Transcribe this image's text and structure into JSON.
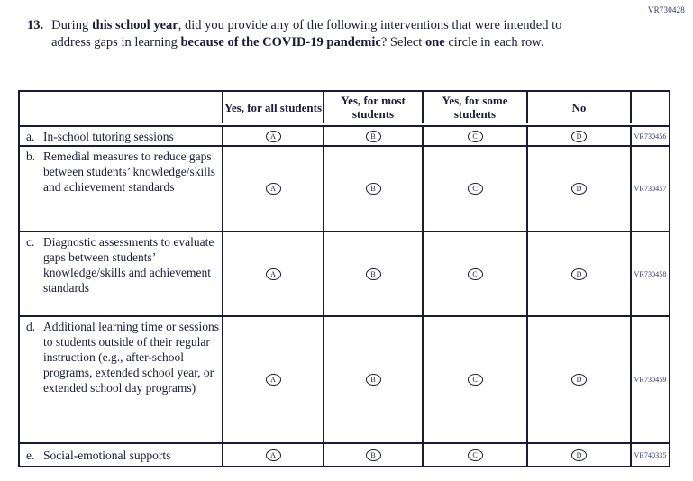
{
  "page": {
    "form_code": "VR730428"
  },
  "question": {
    "number": "13.",
    "segments": [
      {
        "text": "During ",
        "bold": false
      },
      {
        "text": "this school year",
        "bold": true
      },
      {
        "text": ", did you provide any of the following interventions that were intended to address gaps in learning ",
        "bold": false
      },
      {
        "text": "because of the COVID-19 pandemic",
        "bold": true
      },
      {
        "text": "? Select ",
        "bold": false
      },
      {
        "text": "one",
        "bold": true
      },
      {
        "text": " circle in each row.",
        "bold": false
      }
    ]
  },
  "table": {
    "column_headers": [
      "",
      "Yes, for all students",
      "Yes, for most students",
      "Yes, for some students",
      "No",
      ""
    ],
    "option_letters": [
      "A",
      "B",
      "C",
      "D"
    ],
    "rows": [
      {
        "label": "a.",
        "text": "In-school tutoring sessions",
        "code": "VR730456"
      },
      {
        "label": "b.",
        "text": "Remedial measures to reduce gaps between students’ knowledge/skills and achievement standards",
        "code": "VR730457"
      },
      {
        "label": "c.",
        "text": "Diagnostic assessments to evaluate gaps between students’ knowledge/skills and achievement standards",
        "code": "VR730458"
      },
      {
        "label": "d.",
        "text": "Additional learning time or sessions to students outside of their regular instruction (e.g., after-school programs, extended school year, or extended school day programs)",
        "code": "VR730459"
      },
      {
        "label": "e.",
        "text": "Social-emotional supports",
        "code": "VR740335"
      }
    ]
  }
}
